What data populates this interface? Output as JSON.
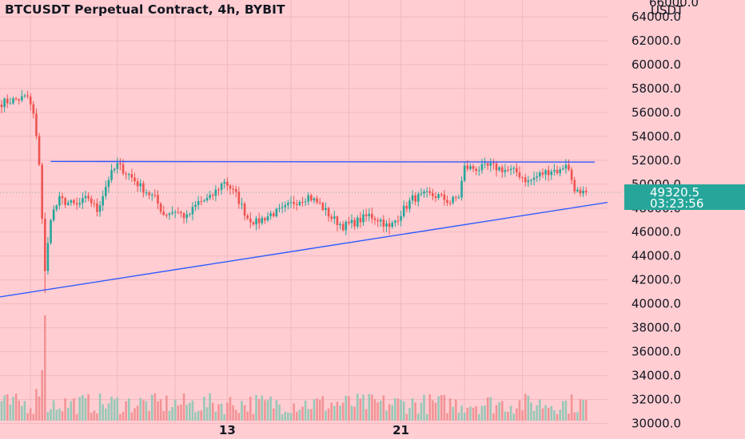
{
  "chart_data": {
    "type": "candlestick",
    "title": "BTCUSDT Perpetual Contract, 4h, BYBIT",
    "currency_label": "USDT",
    "y_axis": {
      "ylim": [
        28700,
        65400
      ],
      "ticks": [
        "64000.0",
        "62000.0",
        "60000.0",
        "58000.0",
        "56000.0",
        "54000.0",
        "52000.0",
        "50000.0",
        "48000.0",
        "46000.0",
        "44000.0",
        "42000.0",
        "40000.0",
        "38000.0",
        "36000.0",
        "34000.0",
        "32000.0",
        "30000.0"
      ],
      "partial_top_tick": "66000.0"
    },
    "x_axis": {
      "ticks": [
        "13",
        "21"
      ],
      "tick_bar_index": [
        78,
        138
      ]
    },
    "last_price": {
      "value": 49320.5,
      "label": "49320.5",
      "countdown": "03:23:56"
    },
    "lines": [
      {
        "name": "resistance",
        "from": {
          "bar": 17,
          "price": 51900
        },
        "to": {
          "bar": 205,
          "price": 51850
        },
        "color": "#2f5bff"
      },
      {
        "name": "support",
        "from": {
          "bar": 0,
          "price": 40600
        },
        "to": {
          "bar": 210,
          "price": 48500
        },
        "color": "#2f5bff"
      }
    ],
    "colors": {
      "up": "#26a69a",
      "down": "#ef5350",
      "background": "#ffcdd2",
      "line": "#2f5bff",
      "tag": "#26a69a"
    },
    "anchors": [
      {
        "bar": 0,
        "price": 56800
      },
      {
        "bar": 9,
        "price": 57300
      },
      {
        "bar": 11,
        "price": 55800
      },
      {
        "bar": 13,
        "price": 51800
      },
      {
        "bar": 15,
        "price": 42600
      },
      {
        "bar": 17,
        "price": 47300
      },
      {
        "bar": 20,
        "price": 48700
      },
      {
        "bar": 26,
        "price": 48200
      },
      {
        "bar": 30,
        "price": 48900
      },
      {
        "bar": 33,
        "price": 47800
      },
      {
        "bar": 37,
        "price": 50500
      },
      {
        "bar": 40,
        "price": 51600
      },
      {
        "bar": 44,
        "price": 50800
      },
      {
        "bar": 48,
        "price": 49800
      },
      {
        "bar": 53,
        "price": 48800
      },
      {
        "bar": 56,
        "price": 47500
      },
      {
        "bar": 60,
        "price": 47800
      },
      {
        "bar": 64,
        "price": 47200
      },
      {
        "bar": 68,
        "price": 48500
      },
      {
        "bar": 72,
        "price": 48800
      },
      {
        "bar": 77,
        "price": 50300
      },
      {
        "bar": 81,
        "price": 49100
      },
      {
        "bar": 85,
        "price": 47200
      },
      {
        "bar": 88,
        "price": 46800
      },
      {
        "bar": 93,
        "price": 47500
      },
      {
        "bar": 97,
        "price": 47800
      },
      {
        "bar": 101,
        "price": 48500
      },
      {
        "bar": 106,
        "price": 49000
      },
      {
        "bar": 110,
        "price": 48300
      },
      {
        "bar": 114,
        "price": 47200
      },
      {
        "bar": 118,
        "price": 46500
      },
      {
        "bar": 122,
        "price": 46800
      },
      {
        "bar": 127,
        "price": 47400
      },
      {
        "bar": 131,
        "price": 47000
      },
      {
        "bar": 134,
        "price": 46300
      },
      {
        "bar": 138,
        "price": 47600
      },
      {
        "bar": 142,
        "price": 48800
      },
      {
        "bar": 147,
        "price": 49100
      },
      {
        "bar": 151,
        "price": 49000
      },
      {
        "bar": 155,
        "price": 48500
      },
      {
        "bar": 158,
        "price": 49000
      },
      {
        "bar": 160,
        "price": 51400
      },
      {
        "bar": 165,
        "price": 51300
      },
      {
        "bar": 169,
        "price": 51500
      },
      {
        "bar": 174,
        "price": 51200
      },
      {
        "bar": 178,
        "price": 51000
      },
      {
        "bar": 182,
        "price": 50200
      },
      {
        "bar": 186,
        "price": 50800
      },
      {
        "bar": 190,
        "price": 51200
      },
      {
        "bar": 193,
        "price": 51100
      },
      {
        "bar": 195,
        "price": 51800
      },
      {
        "bar": 198,
        "price": 49700
      },
      {
        "bar": 200,
        "price": 49000
      },
      {
        "bar": 202,
        "price": 49320
      }
    ],
    "volume_spikes": [
      {
        "bar": 15,
        "value": 1.0
      },
      {
        "bar": 14,
        "value": 0.48
      },
      {
        "bar": 12,
        "value": 0.3
      }
    ]
  }
}
